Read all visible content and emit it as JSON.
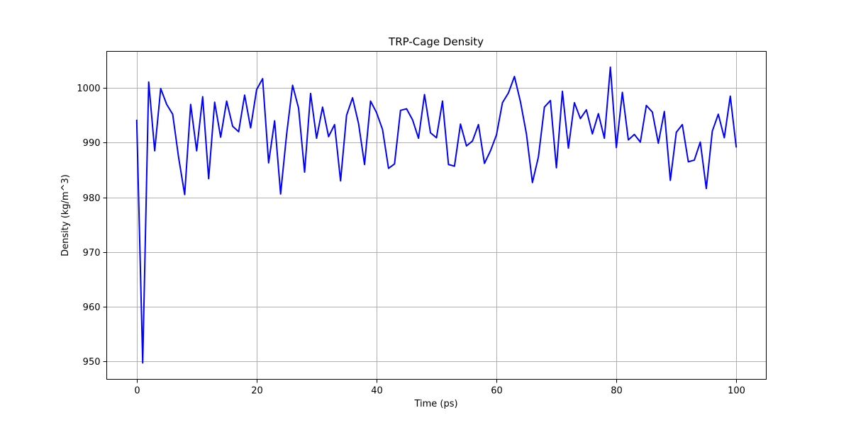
{
  "chart_data": {
    "type": "line",
    "title": "TRP-Cage Density",
    "xlabel": "Time (ps)",
    "ylabel": "Density (kg/m^3)",
    "xlim": [
      -5,
      105
    ],
    "ylim": [
      946.7,
      1006.7
    ],
    "xticks": [
      0,
      20,
      40,
      60,
      80,
      100
    ],
    "yticks": [
      950,
      960,
      970,
      980,
      990,
      1000
    ],
    "grid": true,
    "legend": "none",
    "series": [
      {
        "color": "#0000ff",
        "x": [
          0,
          1,
          2,
          3,
          4,
          5,
          6,
          7,
          8,
          9,
          10,
          11,
          12,
          13,
          14,
          15,
          16,
          17,
          18,
          19,
          20,
          21,
          22,
          23,
          24,
          25,
          26,
          27,
          28,
          29,
          30,
          31,
          32,
          33,
          34,
          35,
          36,
          37,
          38,
          39,
          40,
          41,
          42,
          43,
          44,
          45,
          46,
          47,
          48,
          49,
          50,
          51,
          52,
          53,
          54,
          55,
          56,
          57,
          58,
          59,
          60,
          61,
          62,
          63,
          64,
          65,
          66,
          67,
          68,
          69,
          70,
          71,
          72,
          73,
          74,
          75,
          76,
          77,
          78,
          79,
          80,
          81,
          82,
          83,
          84,
          85,
          86,
          87,
          88,
          89,
          90,
          91,
          92,
          93,
          94,
          95,
          96,
          97,
          98,
          99,
          100
        ],
        "y": [
          994.2,
          949.7,
          1001.1,
          988.5,
          999.9,
          997.0,
          995.2,
          987.2,
          980.5,
          997.0,
          988.5,
          998.4,
          983.4,
          997.4,
          991.0,
          997.6,
          993.0,
          992.0,
          998.7,
          992.7,
          999.7,
          1001.7,
          986.3,
          994.0,
          980.6,
          991.5,
          1000.5,
          996.3,
          984.6,
          999.0,
          990.8,
          996.5,
          991.1,
          993.3,
          983.0,
          995.0,
          998.2,
          993.5,
          986.0,
          997.6,
          995.5,
          992.4,
          985.3,
          986.1,
          995.9,
          996.2,
          994.2,
          990.8,
          998.8,
          991.8,
          990.9,
          997.6,
          986.0,
          985.7,
          993.4,
          989.4,
          990.3,
          993.3,
          986.2,
          988.5,
          991.4,
          997.3,
          999.1,
          1002.1,
          997.5,
          991.6,
          982.7,
          987.4,
          996.5,
          997.7,
          985.4,
          999.4,
          989.0,
          997.3,
          994.4,
          996.0,
          991.6,
          995.3,
          990.8,
          1003.8,
          989.1,
          999.2,
          990.5,
          991.5,
          990.1,
          996.8,
          995.6,
          989.9,
          995.7,
          983.1,
          991.9,
          993.3,
          986.5,
          986.8,
          990.1,
          981.6,
          992.1,
          995.2,
          990.9,
          998.5,
          989.1
        ]
      }
    ]
  }
}
